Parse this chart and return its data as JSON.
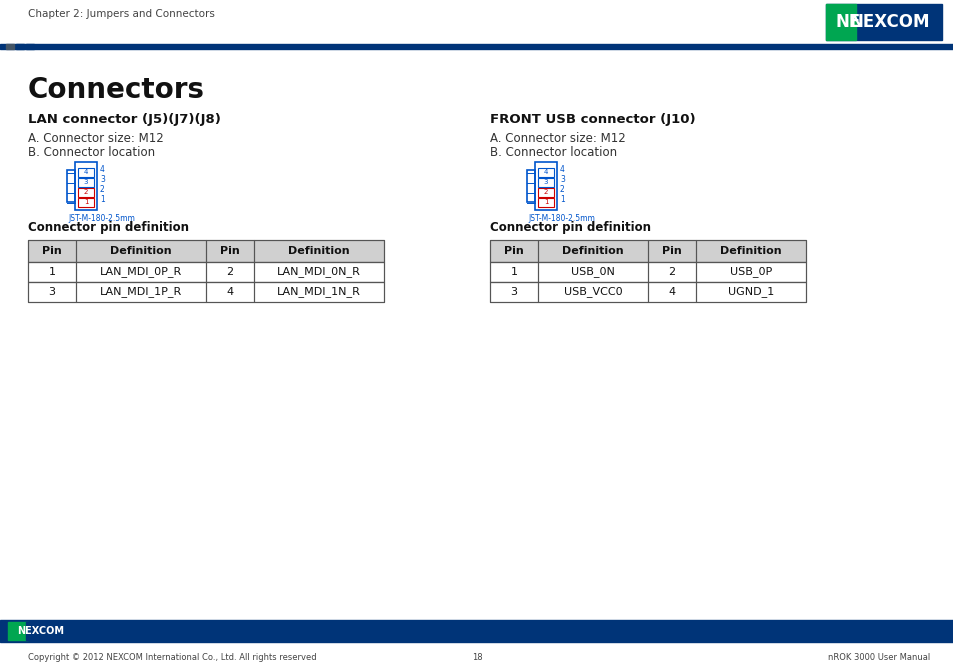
{
  "page_header_text": "Chapter 2: Jumpers and Connectors",
  "main_title": "Connectors",
  "section1_title": "LAN connector (J5)(J7)(J8)",
  "section1_a": "A. Connector size: M12",
  "section1_b": "B. Connector location",
  "section1_connector_label": "JST-M-180-2.5mm",
  "section2_title": "FRONT USB connector (J10)",
  "section2_a": "A. Connector size: M12",
  "section2_b": "B. Connector location",
  "section2_connector_label": "JST-M-180-2.5mm",
  "pin_def_title": "Connector pin definition",
  "lan_table_headers": [
    "Pin",
    "Definition",
    "Pin",
    "Definition"
  ],
  "lan_table_rows": [
    [
      "1",
      "LAN_MDI_0P_R",
      "2",
      "LAN_MDI_0N_R"
    ],
    [
      "3",
      "LAN_MDI_1P_R",
      "4",
      "LAN_MDI_1N_R"
    ]
  ],
  "usb_table_headers": [
    "Pin",
    "Definition",
    "Pin",
    "Definition"
  ],
  "usb_table_rows": [
    [
      "1",
      "USB_0N",
      "2",
      "USB_0P"
    ],
    [
      "3",
      "USB_VCC0",
      "4",
      "UGND_1"
    ]
  ],
  "footer_copyright": "Copyright © 2012 NEXCOM International Co., Ltd. All rights reserved",
  "footer_page": "18",
  "footer_manual": "nROK 3000 User Manual",
  "navy_color": "#003478",
  "green_color": "#00A651",
  "red_color": "#CC0000",
  "blue_connector_color": "#0055CC",
  "table_header_bg": "#D0D0D0",
  "table_border_color": "#555555",
  "bg_color": "#FFFFFF",
  "header_line_color": "#003478",
  "header_sq1_color": "#555577",
  "header_sq2_color": "#003478",
  "header_sq3_color": "#003478"
}
